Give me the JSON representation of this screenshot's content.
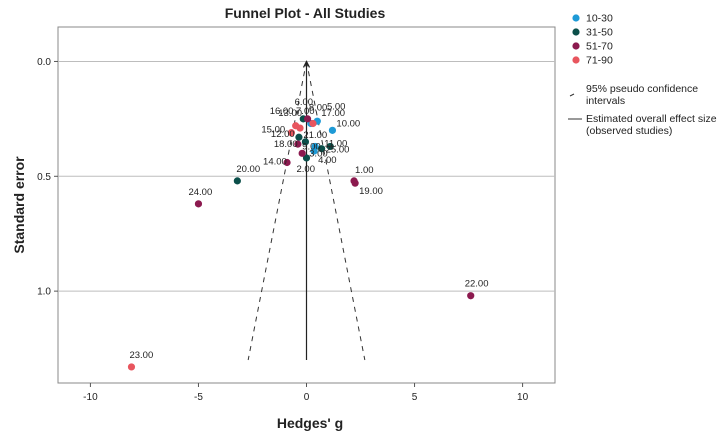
{
  "chart_data": {
    "type": "scatter",
    "title": "Funnel Plot - All Studies",
    "xlabel": "Hedges' g",
    "ylabel": "Standard error",
    "xlim": [
      -11.5,
      11.5
    ],
    "ylim": [
      1.4,
      -0.15
    ],
    "y_reversed": true,
    "x_ticks": [
      -10,
      -5,
      0,
      5,
      10
    ],
    "y_ticks": [
      0.0,
      0.5,
      1.0
    ],
    "y_tick_labels": [
      "0.0",
      "0.5",
      "1.0"
    ],
    "grid": "horizontal",
    "legend_position": "right",
    "series": [
      {
        "name": "10-30",
        "color": "#1e9ad6",
        "points": [
          {
            "label": "10.00",
            "x": 1.2,
            "y": 0.3
          },
          {
            "label": "8.00",
            "x": 0.2,
            "y": 0.27
          },
          {
            "label": "17.00",
            "x": 0.5,
            "y": 0.26
          },
          {
            "label": "3.00",
            "x": 0.4,
            "y": 0.37
          },
          {
            "label": "4.00",
            "x": 0.35,
            "y": 0.39
          }
        ]
      },
      {
        "name": "31-50",
        "color": "#0b4f4a",
        "points": [
          {
            "label": "20.00",
            "x": -3.2,
            "y": 0.52
          },
          {
            "label": "13.00",
            "x": -0.15,
            "y": 0.25
          },
          {
            "label": "12.00",
            "x": -0.35,
            "y": 0.33
          },
          {
            "label": "21.00",
            "x": -0.05,
            "y": 0.35
          },
          {
            "label": "25.00",
            "x": 0.7,
            "y": 0.38
          },
          {
            "label": "2.00",
            "x": 0.0,
            "y": 0.42
          },
          {
            "label": "11.00",
            "x": 1.1,
            "y": 0.37
          }
        ]
      },
      {
        "name": "51-70",
        "color": "#8c1a4f",
        "points": [
          {
            "label": "24.00",
            "x": -5.0,
            "y": 0.62
          },
          {
            "label": "22.00",
            "x": 7.6,
            "y": 1.02
          },
          {
            "label": "1.00",
            "x": 2.2,
            "y": 0.52
          },
          {
            "label": "19.00",
            "x": 2.25,
            "y": 0.53
          },
          {
            "label": "18.00",
            "x": -0.4,
            "y": 0.36
          },
          {
            "label": "14.00",
            "x": -0.9,
            "y": 0.44
          },
          {
            "label": "6.00",
            "x": 0.05,
            "y": 0.25
          },
          {
            "label": "9.00",
            "x": -0.2,
            "y": 0.4
          }
        ]
      },
      {
        "name": "71-90",
        "color": "#e8555e",
        "points": [
          {
            "label": "23.00",
            "x": -8.1,
            "y": 1.33
          },
          {
            "label": "16.00",
            "x": -0.5,
            "y": 0.28
          },
          {
            "label": "15.00",
            "x": -0.7,
            "y": 0.31
          },
          {
            "label": "5.00",
            "x": 0.3,
            "y": 0.27
          },
          {
            "label": "7.00",
            "x": -0.3,
            "y": 0.29
          }
        ]
      }
    ],
    "effect_estimate": 0.0,
    "ci_lines": {
      "apex": [
        0.0,
        0.0
      ],
      "left_bottom": [
        -2.7,
        1.3
      ],
      "right_bottom": [
        2.7,
        1.3
      ]
    },
    "legend_extra": [
      {
        "label": "95% pseudo confidence intervals",
        "style": "dashed"
      },
      {
        "label": "Estimated overall effect size (observed studies)",
        "style": "solid"
      }
    ]
  }
}
